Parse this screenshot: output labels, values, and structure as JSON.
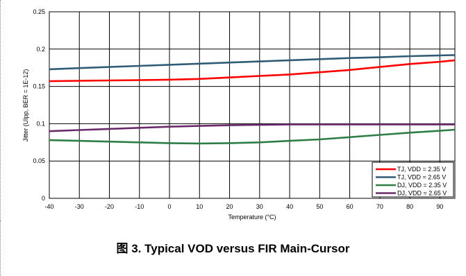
{
  "caption": "图 3. Typical VOD versus FIR Main-Cursor",
  "chart_data": {
    "type": "line",
    "title": "",
    "xlabel": "Temperature (°C)",
    "ylabel": "Jitter (UIpp, BER = 1E-12)",
    "xlim": [
      -40,
      95
    ],
    "ylim": [
      0,
      0.25
    ],
    "x_ticks": [
      -40,
      -30,
      -20,
      -10,
      0,
      10,
      20,
      30,
      40,
      50,
      60,
      70,
      80,
      90
    ],
    "x_tick_labels": [
      "-40",
      "-30",
      "-20",
      "-10",
      "0",
      "10",
      "20",
      "30",
      "40",
      "50",
      "60",
      "70",
      "80",
      "90"
    ],
    "y_ticks": [
      0,
      0.05,
      0.1,
      0.15,
      0.2,
      0.25
    ],
    "y_tick_labels": [
      "0",
      "0.05",
      "0.1",
      "0.15",
      "0.2",
      "0.25"
    ],
    "grid": true,
    "legend_position": "bottom-right",
    "x": [
      -40,
      -30,
      -20,
      -10,
      0,
      10,
      20,
      30,
      40,
      50,
      60,
      70,
      80,
      90,
      95
    ],
    "series": [
      {
        "name": "TJ, VDD = 2.35 V",
        "color": "#ff0000",
        "values": [
          0.157,
          0.1575,
          0.158,
          0.1585,
          0.159,
          0.16,
          0.162,
          0.164,
          0.166,
          0.169,
          0.172,
          0.176,
          0.18,
          0.183,
          0.185
        ]
      },
      {
        "name": "TJ, VDD = 2.65 V",
        "color": "#2f5c74",
        "values": [
          0.173,
          0.1745,
          0.176,
          0.1775,
          0.179,
          0.1805,
          0.182,
          0.1835,
          0.185,
          0.1865,
          0.188,
          0.189,
          0.1905,
          0.1915,
          0.192
        ]
      },
      {
        "name": "DJ, VDD = 2.35 V",
        "color": "#2e7d46",
        "values": [
          0.078,
          0.077,
          0.076,
          0.075,
          0.074,
          0.0735,
          0.074,
          0.075,
          0.077,
          0.079,
          0.082,
          0.085,
          0.088,
          0.0905,
          0.092
        ]
      },
      {
        "name": "DJ, VDD = 2.65 V",
        "color": "#6a2a6a",
        "values": [
          0.09,
          0.0915,
          0.093,
          0.0945,
          0.096,
          0.097,
          0.098,
          0.0985,
          0.099,
          0.099,
          0.099,
          0.099,
          0.099,
          0.099,
          0.099
        ]
      }
    ]
  }
}
